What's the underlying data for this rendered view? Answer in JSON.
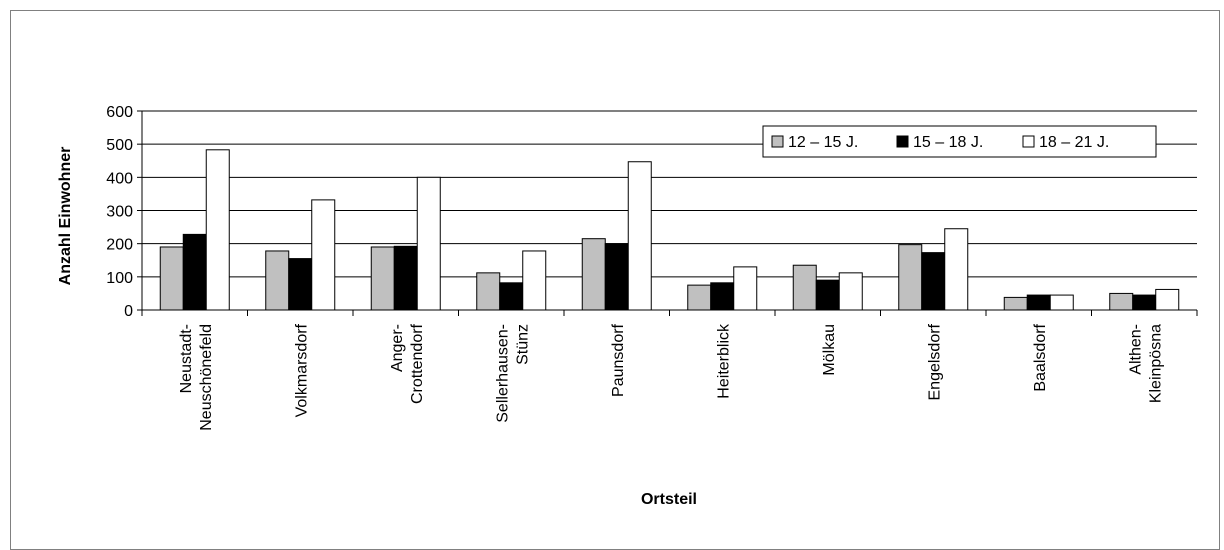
{
  "chart_data": {
    "type": "bar",
    "title": "",
    "xlabel": "Ortsteil",
    "ylabel": "Anzahl Einwohner",
    "ylim": [
      0,
      600
    ],
    "yticks": [
      0,
      100,
      200,
      300,
      400,
      500,
      600
    ],
    "grid": true,
    "legend_position": "top-right",
    "categories": [
      [
        "Neustadt-",
        "Neuschönefeld"
      ],
      [
        "Volkmarsdorf"
      ],
      [
        "Anger-",
        "Crottendorf"
      ],
      [
        "Sellerhausen-",
        "Stünz"
      ],
      [
        "Paunsdorf"
      ],
      [
        "Heiterblick"
      ],
      [
        "Mölkau"
      ],
      [
        "Engelsdorf"
      ],
      [
        "Baalsdorf"
      ],
      [
        "Althen-",
        "Kleinpösna"
      ]
    ],
    "series": [
      {
        "name": "12 – 15 J.",
        "color": "#c0c0c0",
        "values": [
          190,
          178,
          190,
          112,
          215,
          75,
          135,
          197,
          38,
          50
        ]
      },
      {
        "name": "15 – 18 J.",
        "color": "#000000",
        "values": [
          228,
          155,
          192,
          82,
          200,
          82,
          90,
          173,
          45,
          45
        ]
      },
      {
        "name": "18 – 21 J.",
        "color": "#ffffff",
        "values": [
          483,
          332,
          400,
          178,
          447,
          130,
          112,
          245,
          45,
          62
        ]
      }
    ]
  }
}
